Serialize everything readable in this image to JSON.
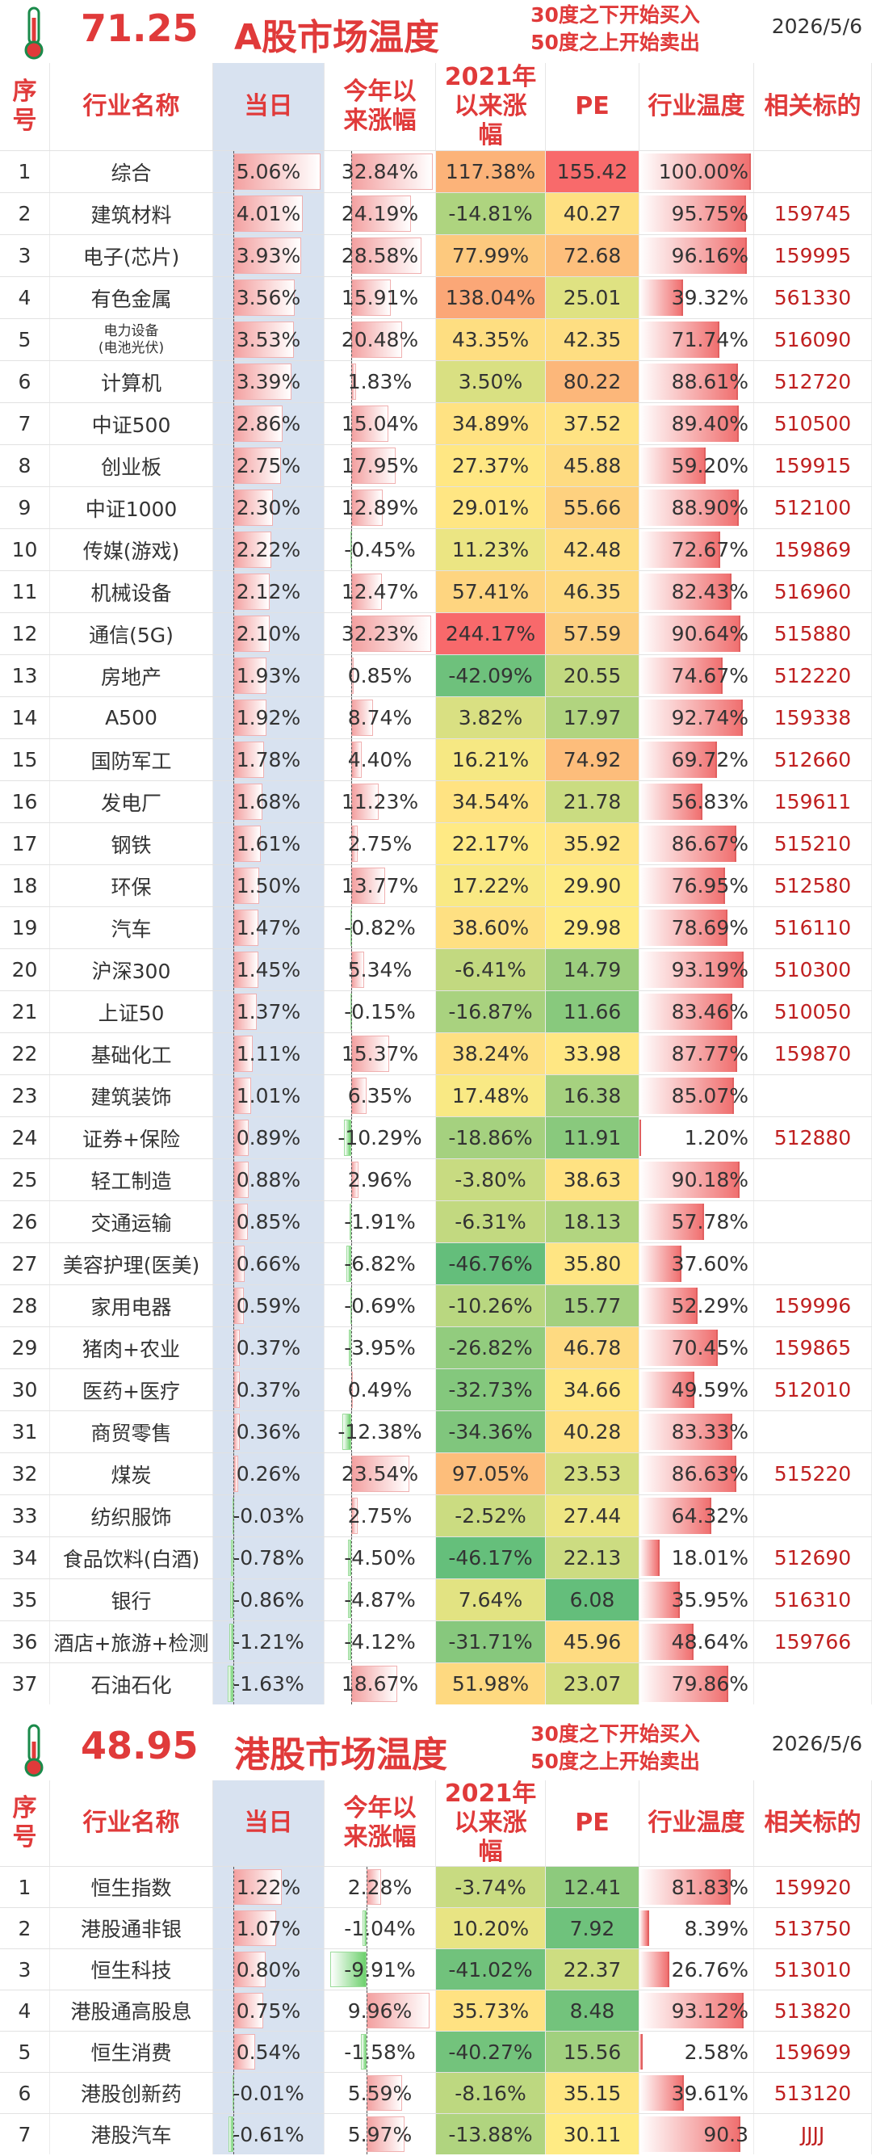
{
  "a_share": {
    "temperature": "71.25",
    "title": "A股市场温度",
    "rule_buy": "30度之下开始买入",
    "rule_sell": "50度之上开始卖出",
    "date": "2026/5/6",
    "headers": {
      "idx": "序号",
      "name": "行业名称",
      "day": "当日",
      "ytd": "今年以来涨幅",
      "since2021": "2021年以来涨幅",
      "pe": "PE",
      "temp": "行业温度",
      "code": "相关标的"
    },
    "rows": [
      {
        "idx": "1",
        "name": "综合",
        "day": "5.06%",
        "ytd": "32.84%",
        "since": "117.38%",
        "pe": "155.42",
        "temp": "100.00%",
        "code": ""
      },
      {
        "idx": "2",
        "name": "建筑材料",
        "day": "4.01%",
        "ytd": "24.19%",
        "since": "-14.81%",
        "pe": "40.27",
        "temp": "95.75%",
        "code": "159745"
      },
      {
        "idx": "3",
        "name": "电子(芯片)",
        "day": "3.93%",
        "ytd": "28.58%",
        "since": "77.99%",
        "pe": "72.68",
        "temp": "96.16%",
        "code": "159995"
      },
      {
        "idx": "4",
        "name": "有色金属",
        "day": "3.56%",
        "ytd": "15.91%",
        "since": "138.04%",
        "pe": "25.01",
        "temp": "39.32%",
        "code": "561330"
      },
      {
        "idx": "5",
        "name": "电力设备(电池光伏)",
        "name_l1": "电力设备",
        "name_l2": "(电池光伏)",
        "day": "3.53%",
        "ytd": "20.48%",
        "since": "43.35%",
        "pe": "42.35",
        "temp": "71.74%",
        "code": "516090"
      },
      {
        "idx": "6",
        "name": "计算机",
        "day": "3.39%",
        "ytd": "1.83%",
        "since": "3.50%",
        "pe": "80.22",
        "temp": "88.61%",
        "code": "512720"
      },
      {
        "idx": "7",
        "name": "中证500",
        "day": "2.86%",
        "ytd": "15.04%",
        "since": "34.89%",
        "pe": "37.52",
        "temp": "89.40%",
        "code": "510500"
      },
      {
        "idx": "8",
        "name": "创业板",
        "day": "2.75%",
        "ytd": "17.95%",
        "since": "27.37%",
        "pe": "45.88",
        "temp": "59.20%",
        "code": "159915"
      },
      {
        "idx": "9",
        "name": "中证1000",
        "day": "2.30%",
        "ytd": "12.89%",
        "since": "29.01%",
        "pe": "55.66",
        "temp": "88.90%",
        "code": "512100"
      },
      {
        "idx": "10",
        "name": "传媒(游戏)",
        "day": "2.22%",
        "ytd": "-0.45%",
        "since": "11.23%",
        "pe": "42.48",
        "temp": "72.67%",
        "code": "159869"
      },
      {
        "idx": "11",
        "name": "机械设备",
        "day": "2.12%",
        "ytd": "12.47%",
        "since": "57.41%",
        "pe": "46.35",
        "temp": "82.43%",
        "code": "516960"
      },
      {
        "idx": "12",
        "name": "通信(5G)",
        "day": "2.10%",
        "ytd": "32.23%",
        "since": "244.17%",
        "pe": "57.59",
        "temp": "90.64%",
        "code": "515880"
      },
      {
        "idx": "13",
        "name": "房地产",
        "day": "1.93%",
        "ytd": "0.85%",
        "since": "-42.09%",
        "pe": "20.55",
        "temp": "74.67%",
        "code": "512220"
      },
      {
        "idx": "14",
        "name": "A500",
        "day": "1.92%",
        "ytd": "8.74%",
        "since": "3.82%",
        "pe": "17.97",
        "temp": "92.74%",
        "code": "159338"
      },
      {
        "idx": "15",
        "name": "国防军工",
        "day": "1.78%",
        "ytd": "4.40%",
        "since": "16.21%",
        "pe": "74.92",
        "temp": "69.72%",
        "code": "512660"
      },
      {
        "idx": "16",
        "name": "发电厂",
        "day": "1.68%",
        "ytd": "11.23%",
        "since": "34.54%",
        "pe": "21.78",
        "temp": "56.83%",
        "code": "159611"
      },
      {
        "idx": "17",
        "name": "钢铁",
        "day": "1.61%",
        "ytd": "2.75%",
        "since": "22.17%",
        "pe": "35.92",
        "temp": "86.67%",
        "code": "515210"
      },
      {
        "idx": "18",
        "name": "环保",
        "day": "1.50%",
        "ytd": "13.77%",
        "since": "17.22%",
        "pe": "29.90",
        "temp": "76.95%",
        "code": "512580"
      },
      {
        "idx": "19",
        "name": "汽车",
        "day": "1.47%",
        "ytd": "-0.82%",
        "since": "38.60%",
        "pe": "29.98",
        "temp": "78.69%",
        "code": "516110"
      },
      {
        "idx": "20",
        "name": "沪深300",
        "day": "1.45%",
        "ytd": "5.34%",
        "since": "-6.41%",
        "pe": "14.79",
        "temp": "93.19%",
        "code": "510300"
      },
      {
        "idx": "21",
        "name": "上证50",
        "day": "1.37%",
        "ytd": "-0.15%",
        "since": "-16.87%",
        "pe": "11.66",
        "temp": "83.46%",
        "code": "510050"
      },
      {
        "idx": "22",
        "name": "基础化工",
        "day": "1.11%",
        "ytd": "15.37%",
        "since": "38.24%",
        "pe": "33.98",
        "temp": "87.77%",
        "code": "159870"
      },
      {
        "idx": "23",
        "name": "建筑装饰",
        "day": "1.01%",
        "ytd": "6.35%",
        "since": "17.48%",
        "pe": "16.38",
        "temp": "85.07%",
        "code": ""
      },
      {
        "idx": "24",
        "name": "证券+保险",
        "day": "0.89%",
        "ytd": "-10.29%",
        "since": "-18.86%",
        "pe": "11.91",
        "temp": "1.20%",
        "code": "512880"
      },
      {
        "idx": "25",
        "name": "轻工制造",
        "day": "0.88%",
        "ytd": "2.96%",
        "since": "-3.80%",
        "pe": "38.63",
        "temp": "90.18%",
        "code": ""
      },
      {
        "idx": "26",
        "name": "交通运输",
        "day": "0.85%",
        "ytd": "-1.91%",
        "since": "-6.31%",
        "pe": "18.13",
        "temp": "57.78%",
        "code": ""
      },
      {
        "idx": "27",
        "name": "美容护理(医美)",
        "day": "0.66%",
        "ytd": "-6.82%",
        "since": "-46.76%",
        "pe": "35.80",
        "temp": "37.60%",
        "code": ""
      },
      {
        "idx": "28",
        "name": "家用电器",
        "day": "0.59%",
        "ytd": "-0.69%",
        "since": "-10.26%",
        "pe": "15.77",
        "temp": "52.29%",
        "code": "159996"
      },
      {
        "idx": "29",
        "name": "猪肉+农业",
        "day": "0.37%",
        "ytd": "-3.95%",
        "since": "-26.82%",
        "pe": "46.78",
        "temp": "70.45%",
        "code": "159865"
      },
      {
        "idx": "30",
        "name": "医药+医疗",
        "day": "0.37%",
        "ytd": "0.49%",
        "since": "-32.73%",
        "pe": "34.66",
        "temp": "49.59%",
        "code": "512010"
      },
      {
        "idx": "31",
        "name": "商贸零售",
        "day": "0.36%",
        "ytd": "-12.38%",
        "since": "-34.36%",
        "pe": "40.28",
        "temp": "83.33%",
        "code": ""
      },
      {
        "idx": "32",
        "name": "煤炭",
        "day": "0.26%",
        "ytd": "23.54%",
        "since": "97.05%",
        "pe": "23.53",
        "temp": "86.63%",
        "code": "515220"
      },
      {
        "idx": "33",
        "name": "纺织服饰",
        "day": "-0.03%",
        "ytd": "2.75%",
        "since": "-2.52%",
        "pe": "27.44",
        "temp": "64.32%",
        "code": ""
      },
      {
        "idx": "34",
        "name": "食品饮料(白酒)",
        "day": "-0.78%",
        "ytd": "-4.50%",
        "since": "-46.17%",
        "pe": "22.13",
        "temp": "18.01%",
        "code": "512690"
      },
      {
        "idx": "35",
        "name": "银行",
        "day": "-0.86%",
        "ytd": "-4.87%",
        "since": "7.64%",
        "pe": "6.08",
        "temp": "35.95%",
        "code": "516310"
      },
      {
        "idx": "36",
        "name": "酒店+旅游+检测",
        "day": "-1.21%",
        "ytd": "-4.12%",
        "since": "-31.71%",
        "pe": "45.96",
        "temp": "48.64%",
        "code": "159766"
      },
      {
        "idx": "37",
        "name": "石油石化",
        "day": "-1.63%",
        "ytd": "18.67%",
        "since": "51.98%",
        "pe": "23.07",
        "temp": "79.86%",
        "code": ""
      }
    ]
  },
  "hk_share": {
    "temperature": "48.95",
    "title": "港股市场温度",
    "rule_buy": "30度之下开始买入",
    "rule_sell": "50度之上开始卖出",
    "date": "2026/5/6",
    "headers": {
      "idx": "序号",
      "name": "行业名称",
      "day": "当日",
      "ytd": "今年以来涨幅",
      "since2021": "2021年以来涨幅",
      "pe": "PE",
      "temp": "行业温度",
      "code": "相关标的"
    },
    "rows": [
      {
        "idx": "1",
        "name": "恒生指数",
        "day": "1.22%",
        "ytd": "2.28%",
        "since": "-3.74%",
        "pe": "12.41",
        "temp": "81.83%",
        "code": "159920"
      },
      {
        "idx": "2",
        "name": "港股通非银",
        "day": "1.07%",
        "ytd": "-1.04%",
        "since": "10.20%",
        "pe": "7.92",
        "temp": "8.39%",
        "code": "513750"
      },
      {
        "idx": "3",
        "name": "恒生科技",
        "day": "0.80%",
        "ytd": "-9.91%",
        "since": "-41.02%",
        "pe": "22.37",
        "temp": "26.76%",
        "code": "513010"
      },
      {
        "idx": "4",
        "name": "港股通高股息",
        "day": "0.75%",
        "ytd": "9.96%",
        "since": "35.73%",
        "pe": "8.48",
        "temp": "93.12%",
        "code": "513820"
      },
      {
        "idx": "5",
        "name": "恒生消费",
        "day": "0.54%",
        "ytd": "-1.58%",
        "since": "-40.27%",
        "pe": "15.56",
        "temp": "2.58%",
        "code": "159699"
      },
      {
        "idx": "6",
        "name": "港股创新药",
        "day": "-0.01%",
        "ytd": "5.59%",
        "since": "-8.16%",
        "pe": "35.15",
        "temp": "39.61%",
        "code": "513120"
      },
      {
        "idx": "7",
        "name": "港股汽车",
        "day": "-0.61%",
        "ytd": "5.97%",
        "since": "-13.88%",
        "pe": "30.11",
        "temp": "90.3",
        "code": "JJJJ"
      }
    ]
  }
}
